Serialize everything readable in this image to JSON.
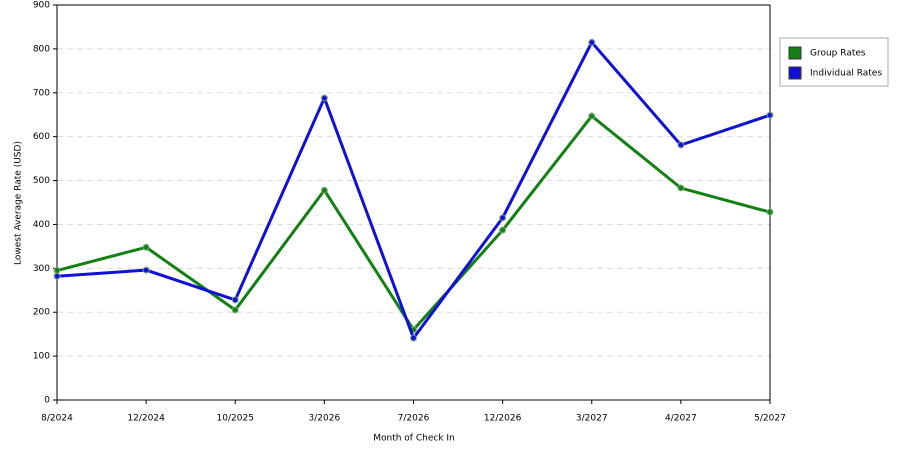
{
  "chart_data": {
    "type": "line",
    "x_label": "Month of Check In",
    "y_label": "Lowest Average Rate (USD)",
    "categories": [
      "8/2024",
      "12/2024",
      "10/2025",
      "3/2026",
      "7/2026",
      "12/2026",
      "3/2027",
      "4/2027",
      "5/2027"
    ],
    "series": [
      {
        "name": "Group Rates",
        "color": "#138013",
        "values": [
          295,
          348,
          205,
          478,
          160,
          387,
          647,
          483,
          428
        ]
      },
      {
        "name": "Individual Rates",
        "color": "#1010d8",
        "values": [
          282,
          296,
          228,
          688,
          141,
          415,
          815,
          581,
          649
        ]
      }
    ],
    "ylim": [
      0,
      900
    ],
    "yticks": [
      0,
      100,
      200,
      300,
      400,
      500,
      600,
      700,
      800,
      900
    ],
    "grid": true,
    "legend": "right"
  }
}
